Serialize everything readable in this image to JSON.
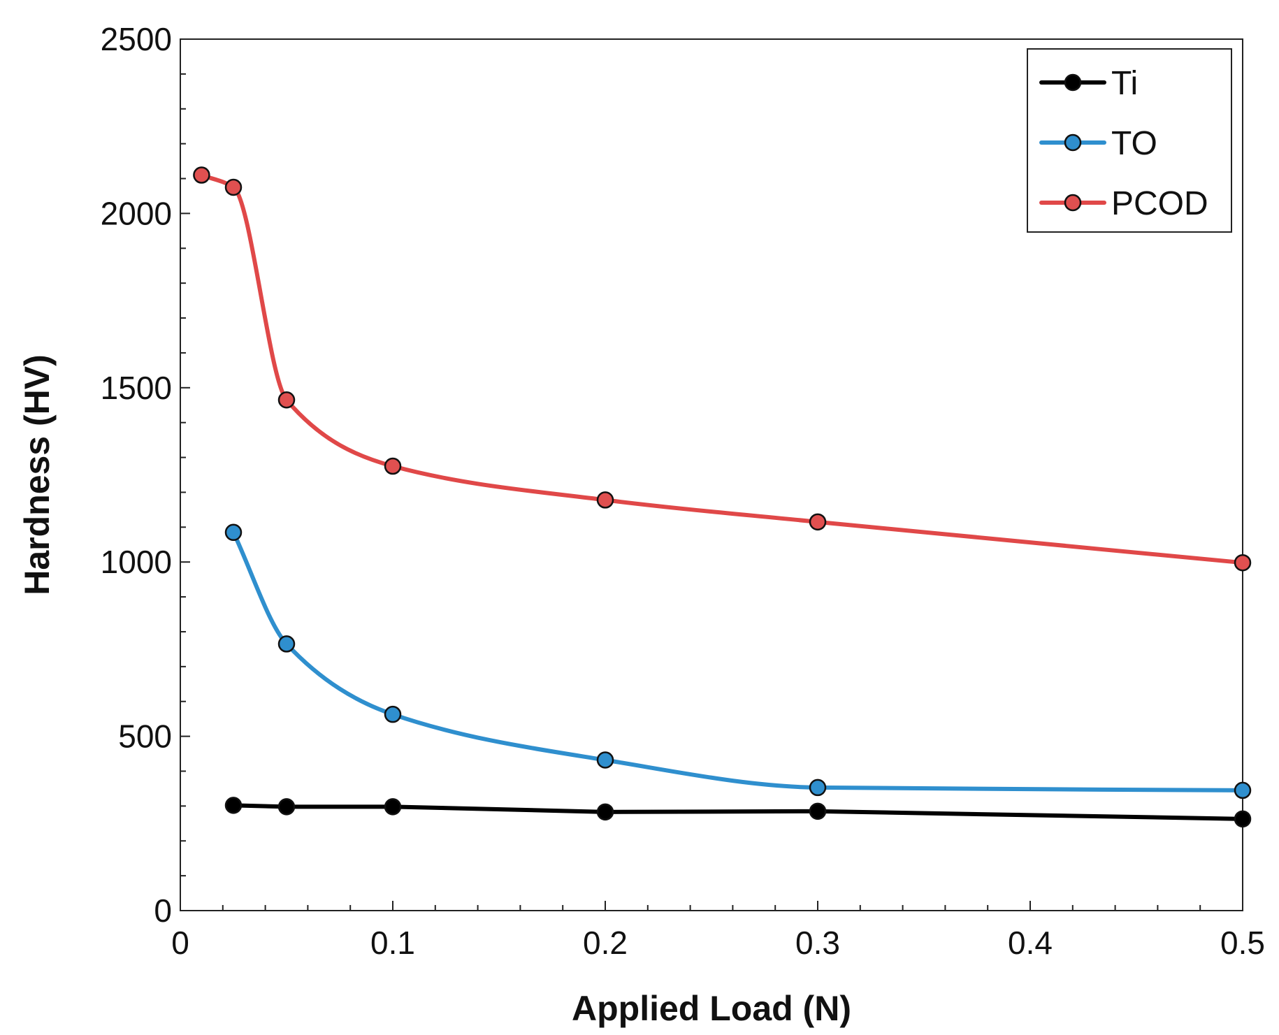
{
  "chart_data": {
    "type": "line",
    "title": "",
    "xlabel": "Applied Load (N)",
    "ylabel": "Hardness (HV)",
    "xlim": [
      0,
      0.5
    ],
    "ylim": [
      0,
      2500
    ],
    "x_ticks": [
      0,
      0.1,
      0.2,
      0.3,
      0.4,
      0.5
    ],
    "x_tick_labels": [
      "0",
      "0.1",
      "0.2",
      "0.3",
      "0.4",
      "0.5"
    ],
    "y_ticks": [
      0,
      500,
      1000,
      1500,
      2000,
      2500
    ],
    "y_tick_labels": [
      "0",
      "500",
      "1000",
      "1500",
      "2000",
      "2500"
    ],
    "grid": false,
    "legend_position": "top-right",
    "series": [
      {
        "name": "Ti",
        "color": "#000000",
        "marker_color": "#000000",
        "smooth": false,
        "x": [
          0.025,
          0.05,
          0.1,
          0.2,
          0.3,
          0.5
        ],
        "values": [
          302,
          298,
          298,
          283,
          285,
          263
        ]
      },
      {
        "name": "TO",
        "color": "#2f8fce",
        "marker_color": "#2f8fce",
        "smooth": true,
        "x": [
          0.025,
          0.05,
          0.1,
          0.2,
          0.3,
          0.5
        ],
        "values": [
          1085,
          765,
          563,
          432,
          353,
          345
        ]
      },
      {
        "name": "PCOD",
        "color": "#e04848",
        "marker_color": "#e05050",
        "smooth": true,
        "x": [
          0.01,
          0.025,
          0.05,
          0.1,
          0.2,
          0.3,
          0.5
        ],
        "values": [
          2110,
          2075,
          1465,
          1275,
          1178,
          1115,
          998
        ]
      }
    ]
  }
}
